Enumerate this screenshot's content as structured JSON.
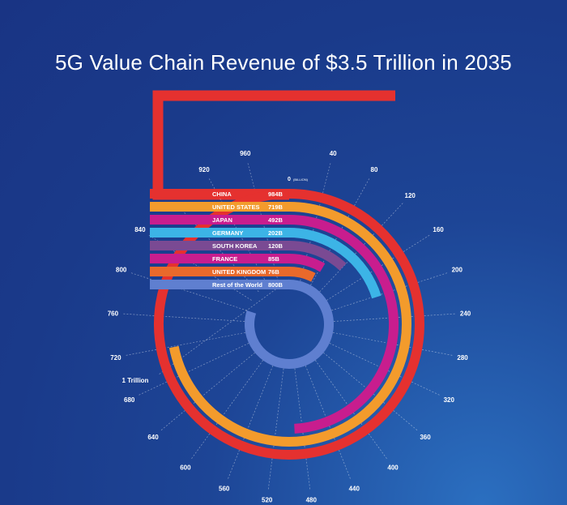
{
  "title": "5G Value Chain Revenue of $3.5 Trillion in 2035",
  "chart_data": {
    "type": "radial-bar",
    "title": "5G Value Chain Revenue of $3.5 Trillion in 2035",
    "unit_label": "(BILLION)",
    "scale_max": 1000,
    "scale_end_label": "1 Trillion",
    "ticks": [
      0,
      40,
      80,
      120,
      160,
      200,
      240,
      280,
      320,
      360,
      400,
      440,
      480,
      520,
      560,
      600,
      640,
      680,
      720,
      760,
      800,
      840,
      880,
      920,
      960
    ],
    "series": [
      {
        "name": "CHINA",
        "label": "984B",
        "value": 984,
        "color": "#e5312f"
      },
      {
        "name": "UNITED STATES",
        "label": "719B",
        "value": 719,
        "color": "#f39b2c"
      },
      {
        "name": "JAPAN",
        "label": "492B",
        "value": 492,
        "color": "#c81d8e"
      },
      {
        "name": "GERMANY",
        "label": "202B",
        "value": 202,
        "color": "#3cb4e6"
      },
      {
        "name": "SOUTH KOREA",
        "label": "120B",
        "value": 120,
        "color": "#7a4a93"
      },
      {
        "name": "FRANCE",
        "label": "85B",
        "value": 85,
        "color": "#c81d8e"
      },
      {
        "name": "UNITED KINGDOM",
        "label": "76B",
        "value": 76,
        "color": "#e9692b"
      },
      {
        "name": "Rest of the World",
        "label": "800B",
        "value": 800,
        "color": "#5f7fd0"
      }
    ]
  }
}
